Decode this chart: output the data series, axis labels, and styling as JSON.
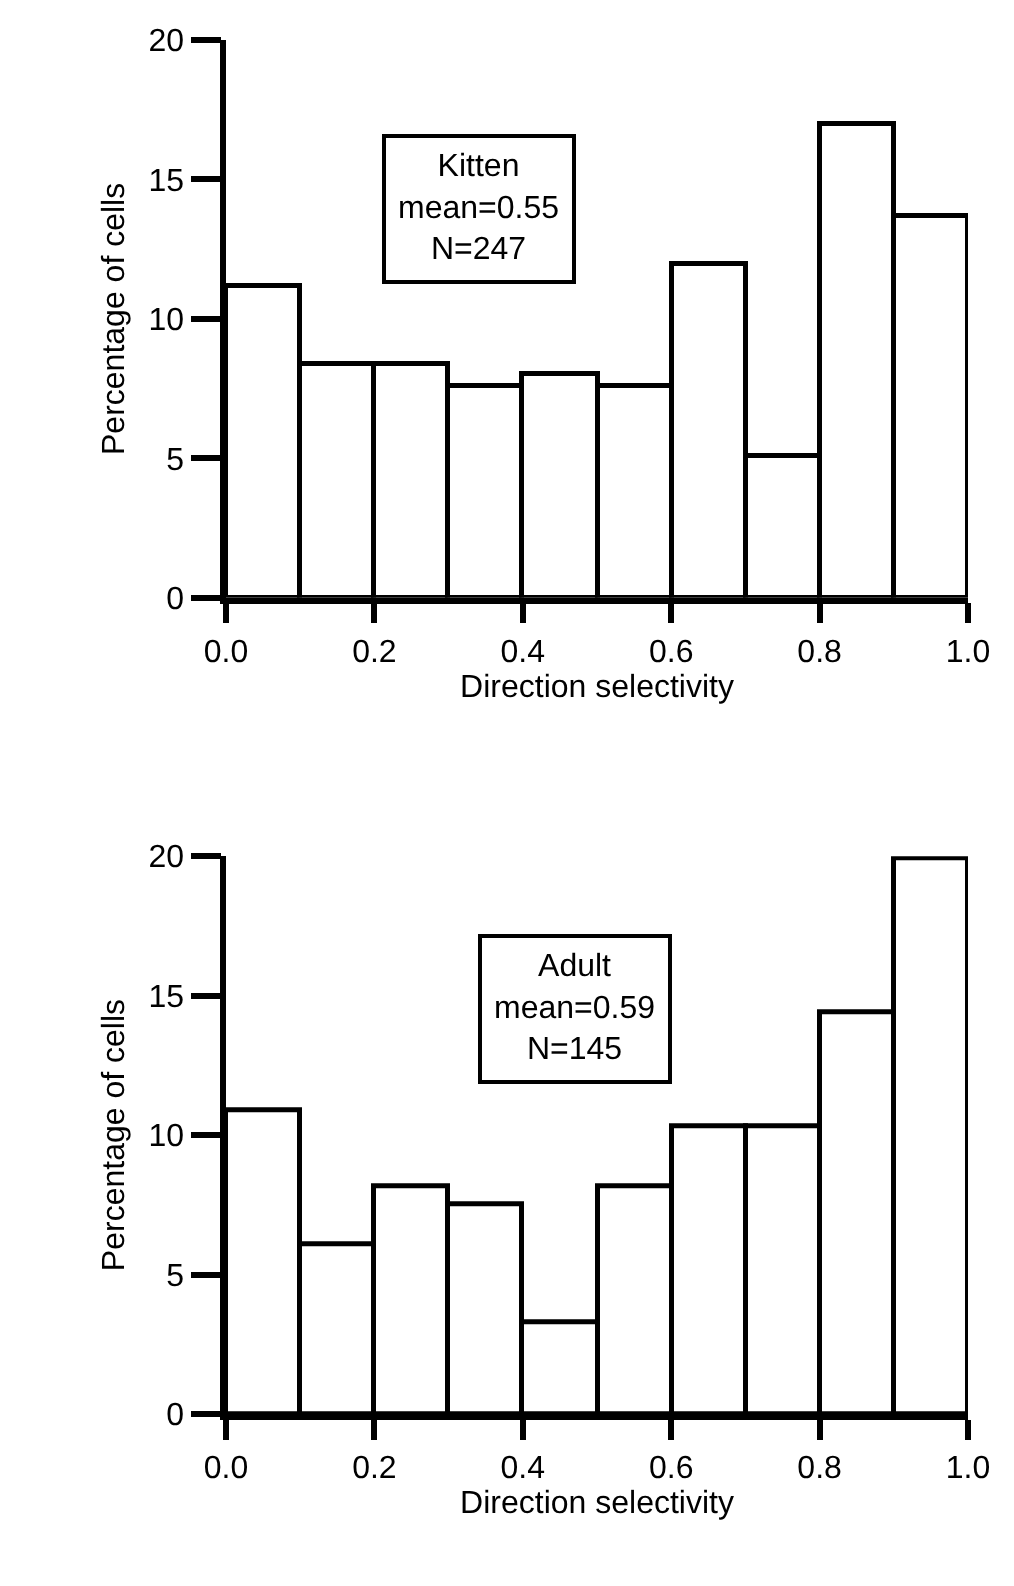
{
  "chart_data": [
    {
      "type": "histogram",
      "bins": [
        0,
        0.1,
        0.2,
        0.3,
        0.4,
        0.5,
        0.6,
        0.7,
        0.8,
        0.9,
        1.0
      ],
      "values": [
        11.2,
        8.4,
        8.4,
        7.6,
        8.0,
        7.6,
        12.0,
        5.1,
        17.0,
        13.7
      ],
      "color": "#ffffff",
      "xlabel": "Direction selectivity",
      "ylabel": "Percentage of cells",
      "annotations": [
        "Kitten\nmean=0.55\nN=247"
      ],
      "xlim": [
        0,
        1
      ],
      "ylim": [
        0,
        20
      ],
      "xticks": [
        {
          "value": 0,
          "label": "0.0"
        },
        {
          "value": 0.2,
          "label": "0.2"
        },
        {
          "value": 0.4,
          "label": "0.4"
        },
        {
          "value": 0.6,
          "label": "0.6"
        },
        {
          "value": 0.8,
          "label": "0.8"
        },
        {
          "value": 1,
          "label": "1.0"
        }
      ],
      "yticks": [
        0,
        5,
        10,
        15,
        20
      ]
    },
    {
      "type": "histogram",
      "bins": [
        0,
        0.1,
        0.2,
        0.3,
        0.4,
        0.5,
        0.6,
        0.7,
        0.8,
        0.9,
        1.0
      ],
      "values": [
        10.9,
        6.1,
        8.2,
        7.5,
        3.3,
        8.2,
        10.3,
        10.3,
        14.4,
        19.9
      ],
      "color": "#ffffff",
      "xlabel": "Direction selectivity",
      "ylabel": "Percentage of cells",
      "annotations": [
        "Adult\nmean=0.59\nN=145"
      ],
      "xlim": [
        0,
        1
      ],
      "ylim": [
        0,
        20
      ],
      "xticks": [
        {
          "value": 0,
          "label": "0.0"
        },
        {
          "value": 0.2,
          "label": "0.2"
        },
        {
          "value": 0.4,
          "label": "0.4"
        },
        {
          "value": 0.6,
          "label": "0.6"
        },
        {
          "value": 0.8,
          "label": "0.8"
        },
        {
          "value": 1,
          "label": "1.0"
        }
      ],
      "yticks": [
        0,
        5,
        10,
        15,
        20
      ]
    }
  ]
}
